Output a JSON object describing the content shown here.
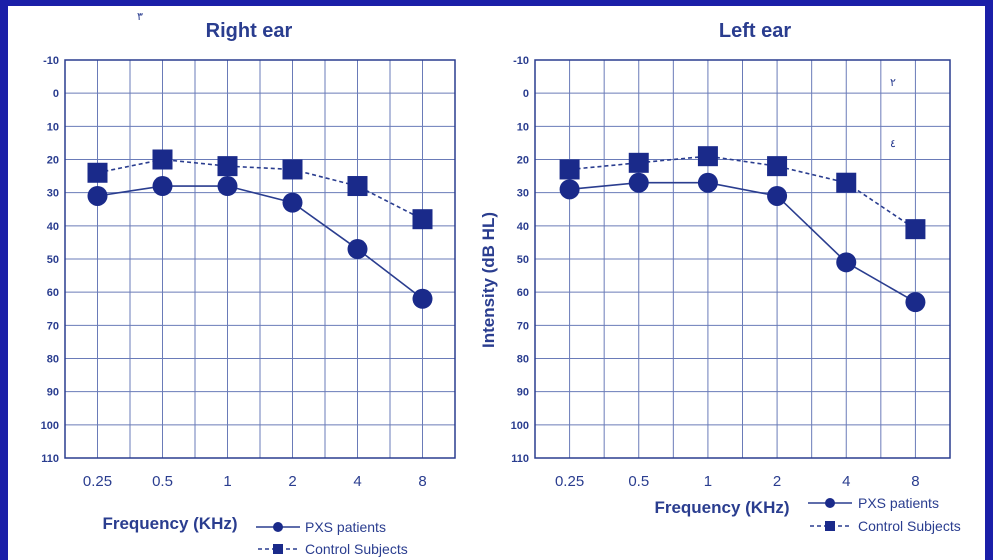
{
  "colors": {
    "background": "#1b1fa8",
    "panel": "#ffffff",
    "ink": "#2a3d8f",
    "grid": "#6a7bb8"
  },
  "chart_data": [
    {
      "type": "line",
      "title": "Right ear",
      "xlabel": "Frequency (KHz)",
      "ylabel": "",
      "categories": [
        "0.25",
        "0.5",
        "1",
        "2",
        "4",
        "8"
      ],
      "y_ticks": [
        "-10",
        "0",
        "10",
        "20",
        "30",
        "40",
        "50",
        "60",
        "70",
        "80",
        "90",
        "100",
        "110"
      ],
      "ylim": [
        -10,
        110
      ],
      "y_inverted": true,
      "grid": true,
      "legend_position": "bottom-right",
      "stray_marks": [
        "٣"
      ],
      "series": [
        {
          "name": "PXS patients",
          "marker": "circle",
          "line": "solid",
          "values": [
            31,
            28,
            28,
            33,
            47,
            62
          ]
        },
        {
          "name": "Control Subjects",
          "marker": "square",
          "line": "dashed",
          "values": [
            24,
            20,
            22,
            23,
            28,
            38
          ]
        }
      ]
    },
    {
      "type": "line",
      "title": "Left ear",
      "xlabel": "Frequency (KHz)",
      "ylabel": "Intensity (dB HL)",
      "categories": [
        "0.25",
        "0.5",
        "1",
        "2",
        "4",
        "8"
      ],
      "y_ticks": [
        "-10",
        "0",
        "10",
        "20",
        "30",
        "40",
        "50",
        "60",
        "70",
        "80",
        "90",
        "100",
        "110"
      ],
      "ylim": [
        -10,
        110
      ],
      "y_inverted": true,
      "grid": true,
      "legend_position": "bottom-right",
      "stray_marks": [
        "٢",
        "٤"
      ],
      "series": [
        {
          "name": "PXS patients",
          "marker": "circle",
          "line": "solid",
          "values": [
            29,
            27,
            27,
            31,
            51,
            63
          ]
        },
        {
          "name": "Control Subjects",
          "marker": "square",
          "line": "dashed",
          "values": [
            23,
            21,
            19,
            22,
            27,
            41
          ]
        }
      ]
    }
  ]
}
